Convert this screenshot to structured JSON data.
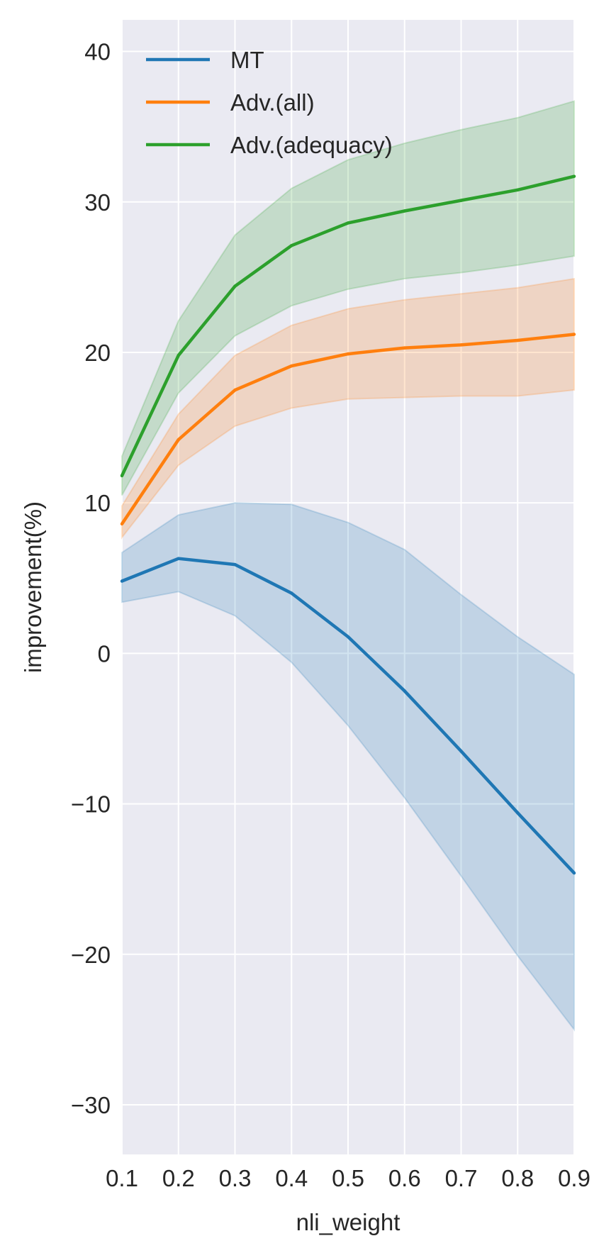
{
  "chart_data": {
    "type": "line",
    "title": "",
    "xlabel": "nli_weight",
    "ylabel": "improvement(%)",
    "x": [
      0.1,
      0.2,
      0.3,
      0.4,
      0.5,
      0.6,
      0.7,
      0.8,
      0.9
    ],
    "x_tick_labels": [
      "0.1",
      "0.2",
      "0.3",
      "0.4",
      "0.5",
      "0.6",
      "0.7",
      "0.8",
      "0.9"
    ],
    "xlim": [
      0.1,
      0.9
    ],
    "y_ticks": [
      -30,
      -20,
      -10,
      0,
      10,
      20,
      30,
      40
    ],
    "y_tick_labels": [
      "−30",
      "−20",
      "−10",
      "0",
      "10",
      "20",
      "30",
      "40"
    ],
    "ylim": [
      -33.3,
      42.1
    ],
    "grid": true,
    "background": "#eaeaf2",
    "grid_color": "#ffffff",
    "legend_position": "top-left",
    "series": [
      {
        "name": "MT",
        "color": "#1f77b4",
        "values": [
          4.8,
          6.3,
          5.9,
          4.0,
          1.1,
          -2.5,
          -6.5,
          -10.6,
          -14.6
        ],
        "lower": [
          3.4,
          4.1,
          2.5,
          -0.6,
          -4.8,
          -9.6,
          -14.8,
          -20.1,
          -25.0
        ],
        "upper": [
          6.7,
          9.2,
          10.0,
          9.9,
          8.7,
          6.9,
          3.9,
          1.1,
          -1.4
        ]
      },
      {
        "name": "Adv.(all)",
        "color": "#ff7f0e",
        "values": [
          8.6,
          14.2,
          17.5,
          19.1,
          19.9,
          20.3,
          20.5,
          20.8,
          21.2
        ],
        "lower": [
          7.7,
          12.5,
          15.1,
          16.3,
          16.9,
          17.0,
          17.1,
          17.1,
          17.5
        ],
        "upper": [
          9.8,
          15.9,
          19.8,
          21.8,
          22.9,
          23.5,
          23.9,
          24.3,
          24.9
        ]
      },
      {
        "name": "Adv.(adequacy)",
        "color": "#2ca02c",
        "values": [
          11.8,
          19.8,
          24.4,
          27.1,
          28.6,
          29.4,
          30.1,
          30.8,
          31.7
        ],
        "lower": [
          10.5,
          17.3,
          21.1,
          23.1,
          24.2,
          24.9,
          25.3,
          25.8,
          26.4
        ],
        "upper": [
          13.1,
          22.1,
          27.8,
          30.9,
          32.8,
          33.9,
          34.8,
          35.6,
          36.7
        ]
      }
    ]
  }
}
